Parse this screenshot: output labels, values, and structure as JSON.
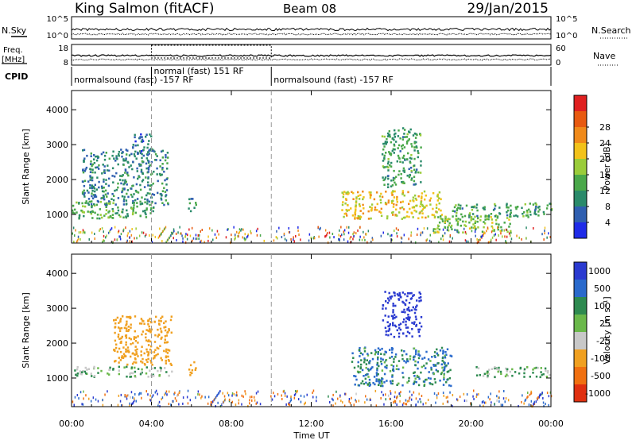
{
  "header": {
    "station": "King Salmon (fitACF)",
    "beam": "Beam 08",
    "date": "29/Jan/2015"
  },
  "top_panels": {
    "nsky_label": "N.Sky",
    "nsearch_label": "N.Search",
    "freq_label_1": "Freq.",
    "freq_label_2": "[MHz]",
    "nave_label": "Nave",
    "cpid_label": "CPID",
    "nsky_ticks": [
      "10^5",
      "10^0"
    ],
    "nsearch_ticks": [
      "10^5",
      "10^0"
    ],
    "freq_ticks": [
      "18",
      "8"
    ],
    "nave_ticks": [
      "60",
      "0"
    ],
    "cpid_segments": [
      {
        "start": 0,
        "end": 4.0,
        "label": "normalsound (fast) -157 RF",
        "row": 0
      },
      {
        "start": 4.0,
        "end": 10.0,
        "label": "normal (fast) 151 RF",
        "row": 1
      },
      {
        "start": 10.0,
        "end": 24.0,
        "label": "normalsound (fast) -157 RF",
        "row": 0
      }
    ]
  },
  "axes": {
    "ylabel": "Slant Range [km]",
    "xlabel": "Time UT",
    "x_ticks": [
      "00:00",
      "04:00",
      "08:00",
      "12:00",
      "16:00",
      "20:00",
      "00:00"
    ],
    "y_ticks": [
      "1000",
      "2000",
      "3000",
      "4000"
    ]
  },
  "colorbars": {
    "power_label": "Power [dB]",
    "power_ticks": [
      "4",
      "8",
      "12",
      "16",
      "20",
      "24",
      "28"
    ],
    "velocity_label": "Velocity [m s⁻¹]",
    "velocity_ticks": [
      "1000",
      "500",
      "100",
      "25",
      "-25",
      "-100",
      "-500",
      "-1000"
    ]
  },
  "colors": {
    "power": [
      "#1f2be8",
      "#2f5fb0",
      "#2a8a6a",
      "#4aa84a",
      "#9acc3a",
      "#f2c21a",
      "#f08a1a",
      "#e85a10",
      "#e02020"
    ],
    "velocity": [
      "#2a3ad0",
      "#2a6acc",
      "#2e8a50",
      "#6ab84a",
      "#c8c8c8",
      "#f0a020",
      "#f07010",
      "#e03010"
    ],
    "ground": "#bdbdb5"
  },
  "chart_data": [
    {
      "type": "heatmap",
      "panel": "power",
      "x_unit": "hours UT",
      "y_unit": "km",
      "xlim": [
        0,
        24
      ],
      "ylim": [
        180,
        4550
      ],
      "zlim": [
        0,
        30
      ],
      "regions": [
        {
          "t0": 0.0,
          "t1": 4.1,
          "r0": 900,
          "r1": 1400,
          "val": 12
        },
        {
          "t0": 0.5,
          "t1": 4.8,
          "r0": 1300,
          "r1": 2900,
          "val": 8
        },
        {
          "t0": 3.0,
          "t1": 4.0,
          "r0": 2700,
          "r1": 3400,
          "val": 6
        },
        {
          "t0": 5.8,
          "t1": 6.2,
          "r0": 1100,
          "r1": 1500,
          "val": 8
        },
        {
          "t0": 13.5,
          "t1": 18.5,
          "r0": 900,
          "r1": 1700,
          "val": 18
        },
        {
          "t0": 15.5,
          "t1": 17.5,
          "r0": 1800,
          "r1": 3500,
          "val": 10
        },
        {
          "t0": 18.0,
          "t1": 22.0,
          "r0": 500,
          "r1": 1000,
          "val": 14
        },
        {
          "t0": 19.0,
          "t1": 24.0,
          "r0": 950,
          "r1": 1350,
          "val": 10
        }
      ]
    },
    {
      "type": "heatmap",
      "panel": "velocity",
      "x_unit": "hours UT",
      "y_unit": "km",
      "xlim": [
        0,
        24
      ],
      "ylim": [
        180,
        4550
      ],
      "zlim": [
        -1000,
        1000
      ],
      "regions": [
        {
          "t0": 0.0,
          "t1": 5.0,
          "r0": 1050,
          "r1": 1350,
          "val": 0
        },
        {
          "t0": 2.0,
          "t1": 5.0,
          "r0": 1400,
          "r1": 2800,
          "val": -300
        },
        {
          "t0": 5.8,
          "t1": 6.2,
          "r0": 1100,
          "r1": 1500,
          "val": -300
        },
        {
          "t0": 14.0,
          "t1": 19.0,
          "r0": 800,
          "r1": 1900,
          "val": 100
        },
        {
          "t0": 15.5,
          "t1": 17.5,
          "r0": 2200,
          "r1": 3500,
          "val": 700
        },
        {
          "t0": 20.0,
          "t1": 24.0,
          "r0": 1050,
          "r1": 1350,
          "val": 0
        }
      ]
    }
  ]
}
